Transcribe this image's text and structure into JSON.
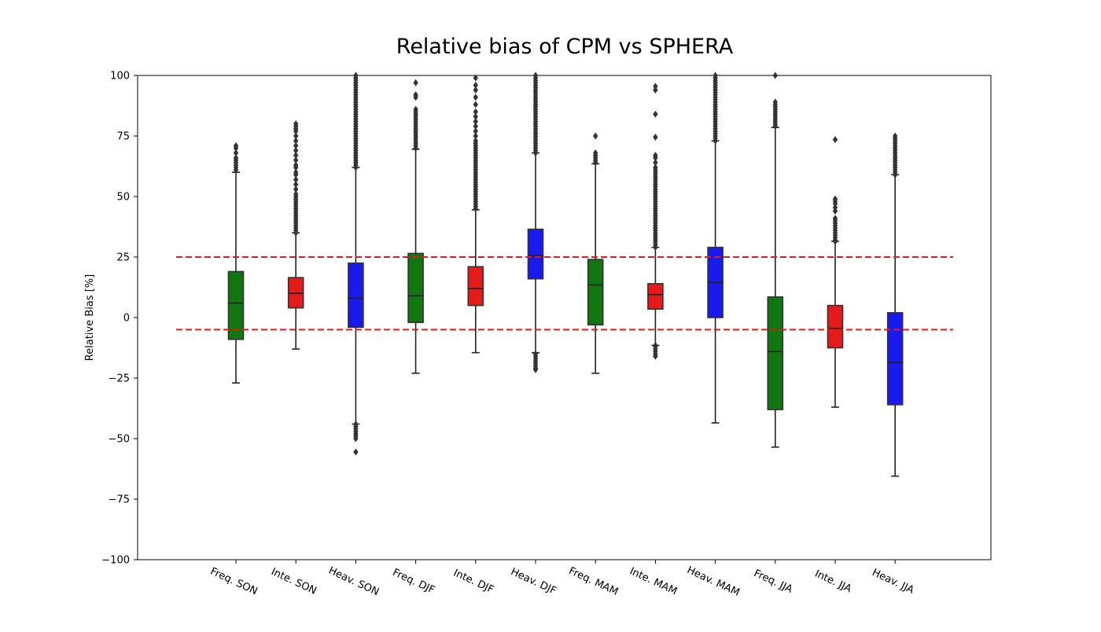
{
  "chart_data": {
    "type": "box",
    "title": "Relative bias of CPM vs SPHERA",
    "xlabel": "",
    "ylabel": "Relative Bias [%]",
    "ylim": [
      -100,
      100
    ],
    "yticks": [
      -100,
      -75,
      -50,
      -25,
      0,
      25,
      50,
      75,
      100
    ],
    "categories": [
      "Freq. SON",
      "Inte. SON",
      "Heav. SON",
      "Freq. DJF",
      "Inte. DJF",
      "Heav. DJF",
      "Freq. MAM",
      "Inte. MAM",
      "Heav. MAM",
      "Freq. JJA",
      "Inte. JJA",
      "Heav. JJA"
    ],
    "series_colors": {
      "Freq.": "#117711",
      "Inte.": "#e51a1a",
      "Heav.": "#1a1aee"
    },
    "reference_lines": [
      {
        "y": 25,
        "color": "#e31a1a",
        "style": "dashed"
      },
      {
        "y": -5,
        "color": "#e31a1a",
        "style": "dashed"
      }
    ],
    "boxes": [
      {
        "category": "Freq. SON",
        "color": "#117711",
        "whisker_low": -27,
        "q1": -9,
        "median": 6,
        "q3": 19,
        "whisker_high": 60,
        "outliers_high": [
          61,
          62,
          63,
          64,
          65,
          66,
          68,
          70,
          71
        ],
        "outliers_low": []
      },
      {
        "category": "Inte. SON",
        "color": "#e51a1a",
        "whisker_low": -13,
        "q1": 4,
        "median": 10,
        "q3": 16.5,
        "whisker_high": 35,
        "outliers_high": [
          35,
          36,
          37,
          38,
          39,
          40,
          41,
          42,
          43,
          44,
          45,
          46,
          47,
          48,
          49,
          50,
          51,
          53,
          55,
          57,
          59,
          60,
          62,
          63,
          65,
          67,
          69,
          71,
          73,
          75,
          77,
          78,
          79,
          80
        ],
        "outliers_low": []
      },
      {
        "category": "Heav. SON",
        "color": "#1a1aee",
        "whisker_low": -44,
        "q1": -4,
        "median": 8,
        "q3": 22.5,
        "whisker_high": 62,
        "outliers_high": [
          62,
          63,
          64,
          65,
          66,
          67,
          68,
          69,
          70,
          71,
          72,
          73,
          74,
          75,
          76,
          77,
          78,
          79,
          80,
          81,
          82,
          83,
          84,
          85,
          86,
          87,
          88,
          89,
          90,
          91,
          92,
          93,
          94,
          95,
          96,
          97,
          98,
          99,
          100
        ],
        "outliers_low": [
          -44,
          -45,
          -46,
          -47,
          -48,
          -49,
          -50,
          -55.5
        ]
      },
      {
        "category": "Freq. DJF",
        "color": "#117711",
        "whisker_low": -23,
        "q1": -2,
        "median": 9,
        "q3": 26.5,
        "whisker_high": 69.5,
        "outliers_high": [
          70,
          71,
          72,
          73,
          74,
          75,
          76,
          77,
          78,
          79,
          80,
          81,
          82,
          83,
          84,
          85,
          86,
          91,
          92,
          97
        ],
        "outliers_low": []
      },
      {
        "category": "Inte. DJF",
        "color": "#e51a1a",
        "whisker_low": -14.5,
        "q1": 5,
        "median": 12,
        "q3": 21,
        "whisker_high": 44.5,
        "outliers_high": [
          45,
          46,
          47,
          48,
          49,
          50,
          51,
          52,
          53,
          54,
          55,
          56,
          57,
          58,
          59,
          60,
          61,
          62,
          63,
          64,
          65,
          66,
          67,
          68,
          69,
          70,
          71,
          72,
          73,
          75,
          77,
          79,
          81,
          83,
          85,
          88,
          91,
          94,
          96,
          99
        ],
        "outliers_low": []
      },
      {
        "category": "Heav. DJF",
        "color": "#1a1aee",
        "whisker_low": -14.5,
        "q1": 16,
        "median": 25.5,
        "q3": 36.5,
        "whisker_high": 68,
        "outliers_high": [
          68,
          69,
          70,
          71,
          72,
          73,
          74,
          75,
          76,
          77,
          78,
          79,
          80,
          81,
          82,
          83,
          84,
          85,
          86,
          87,
          88,
          89,
          90,
          91,
          92,
          93,
          94,
          95,
          96,
          97,
          98,
          99,
          100
        ],
        "outliers_low": [
          -15,
          -16,
          -17,
          -18,
          -19,
          -20,
          -21,
          -21.5
        ]
      },
      {
        "category": "Freq. MAM",
        "color": "#117711",
        "whisker_low": -23,
        "q1": -3,
        "median": 13.5,
        "q3": 24,
        "whisker_high": 63.5,
        "outliers_high": [
          64,
          65,
          66,
          67,
          68,
          75
        ],
        "outliers_low": []
      },
      {
        "category": "Inte. MAM",
        "color": "#e51a1a",
        "whisker_low": -11.5,
        "q1": 3.5,
        "median": 9.5,
        "q3": 14,
        "whisker_high": 29,
        "outliers_high": [
          29,
          30,
          31,
          32,
          33,
          34,
          35,
          36,
          37,
          38,
          39,
          40,
          41,
          42,
          43,
          44,
          45,
          46,
          47,
          48,
          49,
          50,
          51,
          52,
          53,
          54,
          55,
          56,
          57,
          58,
          59,
          60,
          61,
          62,
          64,
          66,
          67,
          74.5,
          84,
          94,
          95.5
        ],
        "outliers_low": [
          -11.5,
          -12,
          -13,
          -14,
          -15,
          -16
        ]
      },
      {
        "category": "Heav. MAM",
        "color": "#1a1aee",
        "whisker_low": -43.5,
        "q1": 0,
        "median": 14.5,
        "q3": 29,
        "whisker_high": 73,
        "outliers_high": [
          73,
          74,
          75,
          76,
          77,
          78,
          79,
          80,
          81,
          82,
          83,
          84,
          85,
          86,
          87,
          88,
          89,
          90,
          91,
          92,
          93,
          94,
          95,
          96,
          97,
          98,
          99,
          100
        ],
        "outliers_low": []
      },
      {
        "category": "Freq. JJA",
        "color": "#117711",
        "whisker_low": -53.5,
        "q1": -38,
        "median": -14,
        "q3": 8.5,
        "whisker_high": 78.5,
        "outliers_high": [
          79,
          80,
          81,
          82,
          83,
          84,
          85,
          86,
          87,
          88,
          89,
          100
        ],
        "outliers_low": []
      },
      {
        "category": "Inte. JJA",
        "color": "#e51a1a",
        "whisker_low": -37,
        "q1": -12.5,
        "median": -4.5,
        "q3": 5,
        "whisker_high": 31.5,
        "outliers_high": [
          31.5,
          32,
          33,
          34,
          35,
          36,
          37,
          38,
          39,
          40,
          41,
          44,
          45.5,
          47,
          48,
          49,
          73.5
        ],
        "outliers_low": []
      },
      {
        "category": "Heav. JJA",
        "color": "#1a1aee",
        "whisker_low": -65.5,
        "q1": -36,
        "median": -18.5,
        "q3": 2,
        "whisker_high": 59,
        "outliers_high": [
          59,
          60,
          61,
          62,
          63,
          64,
          65,
          66,
          67,
          68,
          69,
          70,
          71,
          72,
          73,
          74,
          75
        ],
        "outliers_low": []
      }
    ]
  }
}
